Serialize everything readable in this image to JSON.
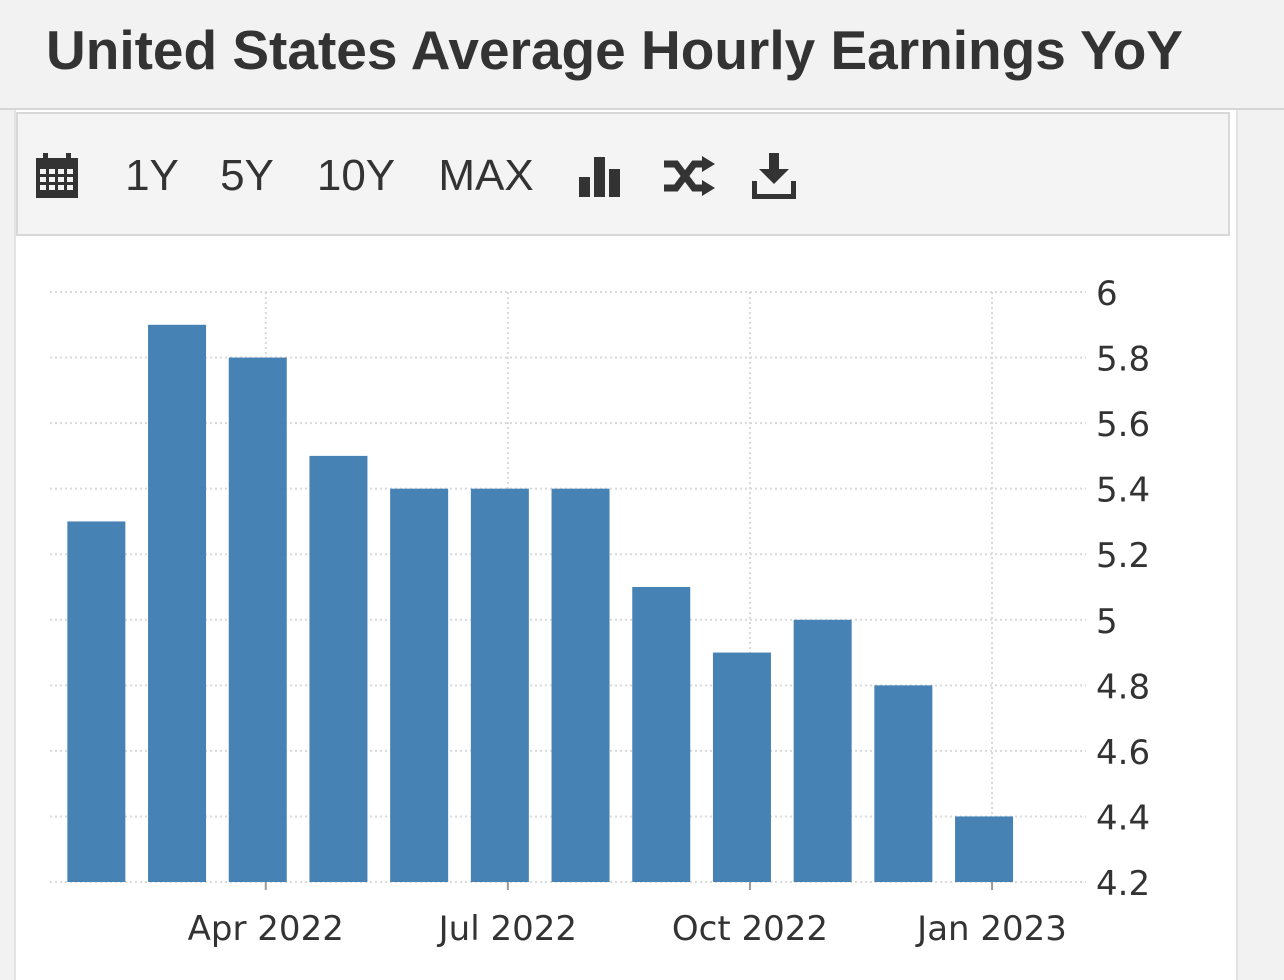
{
  "title": "United States Average Hourly Earnings YoY",
  "toolbar": {
    "calendar_icon": "calendar-icon",
    "range_1y": "1Y",
    "range_5y": "5Y",
    "range_10y": "10Y",
    "range_max": "MAX",
    "bar_chart_icon": "bar-chart-icon",
    "compare_icon": "shuffle-icon",
    "download_icon": "download-icon"
  },
  "colors": {
    "bar": "#4682b4",
    "grid": "#d9d9d9",
    "text": "#333333"
  },
  "chart_data": {
    "type": "bar",
    "title": "United States Average Hourly Earnings YoY",
    "categories": [
      "Feb 2022",
      "Mar 2022",
      "Apr 2022",
      "May 2022",
      "Jun 2022",
      "Jul 2022",
      "Aug 2022",
      "Sep 2022",
      "Oct 2022",
      "Nov 2022",
      "Dec 2022",
      "Jan 2023"
    ],
    "values": [
      5.3,
      5.9,
      5.8,
      5.5,
      5.4,
      5.4,
      5.4,
      5.1,
      4.9,
      5.0,
      4.8,
      4.4
    ],
    "x_tick_labels": [
      "Apr 2022",
      "Jul 2022",
      "Oct 2022",
      "Jan 2023"
    ],
    "y_ticks": [
      "6",
      "5.8",
      "5.6",
      "5.4",
      "5.2",
      "5",
      "4.8",
      "4.6",
      "4.4",
      "4.2"
    ],
    "ylim": [
      4.2,
      6.0
    ],
    "y_axis_position": "right",
    "grid": true,
    "xlabel": "",
    "ylabel": ""
  }
}
